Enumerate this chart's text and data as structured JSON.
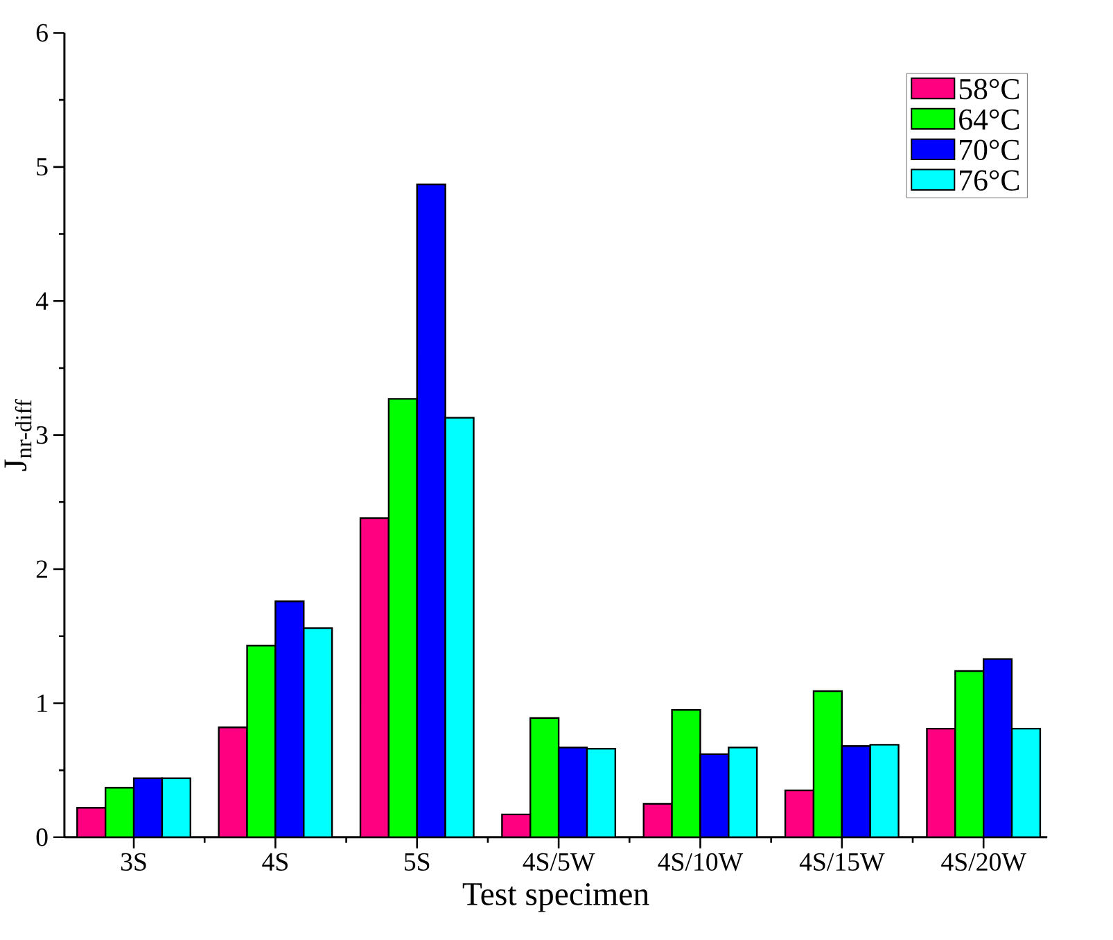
{
  "chart_data": {
    "type": "bar",
    "xlabel": "Test specimen",
    "ylabel": "J$_{nr-diff}$",
    "categories": [
      "3S",
      "4S",
      "5S",
      "4S/5W",
      "4S/10W",
      "4S/15W",
      "4S/20W"
    ],
    "ylim": [
      0,
      6
    ],
    "yticks": [
      0,
      1,
      2,
      3,
      4,
      5,
      6
    ],
    "legend": "top right",
    "grid": false,
    "series": [
      {
        "name": "58°C",
        "color": "#ff0080",
        "values": [
          0.22,
          0.82,
          2.38,
          0.17,
          0.25,
          0.35,
          0.81
        ]
      },
      {
        "name": "64°C",
        "color": "#00ff00",
        "values": [
          0.37,
          1.43,
          3.27,
          0.89,
          0.95,
          1.09,
          1.24
        ]
      },
      {
        "name": "70°C",
        "color": "#0000ff",
        "values": [
          0.44,
          1.76,
          4.87,
          0.67,
          0.62,
          0.68,
          1.33
        ]
      },
      {
        "name": "76°C",
        "color": "#00ffff",
        "values": [
          0.44,
          1.56,
          3.13,
          0.66,
          0.67,
          0.69,
          0.81
        ]
      }
    ]
  }
}
